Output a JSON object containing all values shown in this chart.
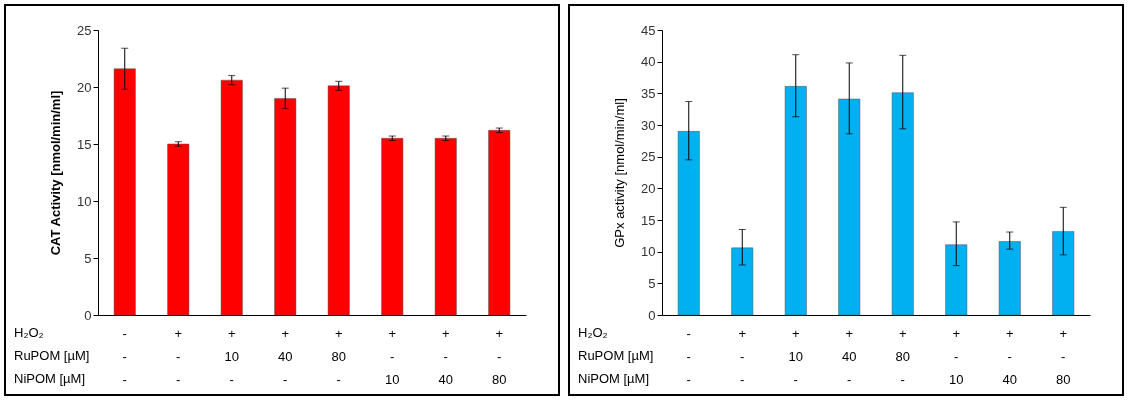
{
  "chart_data": [
    {
      "type": "bar",
      "ylabel": "CAT Activity [nmol/min/ml]",
      "categories": [
        "-\n-\n-",
        "+\n-\n-",
        "+\n10\n-",
        "+\n40\n-",
        "+\n80\n-",
        "+\n-\n10",
        "+\n-\n40",
        "+\n-\n80"
      ],
      "series": [
        {
          "color": "#ff0000",
          "values": [
            21.6,
            15.0,
            20.6,
            19.0,
            20.1,
            15.5,
            15.5,
            16.2
          ],
          "errors": [
            1.8,
            0.2,
            0.4,
            0.9,
            0.4,
            0.2,
            0.2,
            0.2
          ]
        }
      ],
      "ylim": [
        0,
        25
      ],
      "yticks": [
        0,
        5,
        10,
        15,
        20,
        25
      ],
      "annotations": [
        "H₂O₂",
        "RuPOM [µM]",
        "NiPOM [µM]"
      ]
    },
    {
      "type": "bar",
      "ylabel": "GPx activity [nmol/min/ml]",
      "categories": [
        "-\n-\n-",
        "+\n-\n-",
        "+\n10\n-",
        "+\n40\n-",
        "+\n80\n-",
        "+\n-\n10",
        "+\n-\n40",
        "+\n-\n80"
      ],
      "series": [
        {
          "color": "#00b0f0",
          "values": [
            29.0,
            10.6,
            36.1,
            34.1,
            35.1,
            11.1,
            11.6,
            13.2
          ],
          "errors": [
            [
              24.5,
              33.7
            ],
            [
              7.9,
              13.5
            ],
            [
              31.3,
              41.1
            ],
            [
              28.6,
              39.8
            ],
            [
              29.4,
              41.0
            ],
            [
              7.8,
              14.7
            ],
            [
              10.4,
              13.1
            ],
            [
              9.5,
              17.0
            ]
          ]
        }
      ],
      "ylim": [
        0,
        45
      ],
      "yticks": [
        0,
        5,
        10,
        15,
        20,
        25,
        30,
        35,
        40,
        45
      ],
      "annotations": [
        "H₂O₂",
        "RuPOM [µM]",
        "NiPOM [µM]"
      ]
    }
  ]
}
